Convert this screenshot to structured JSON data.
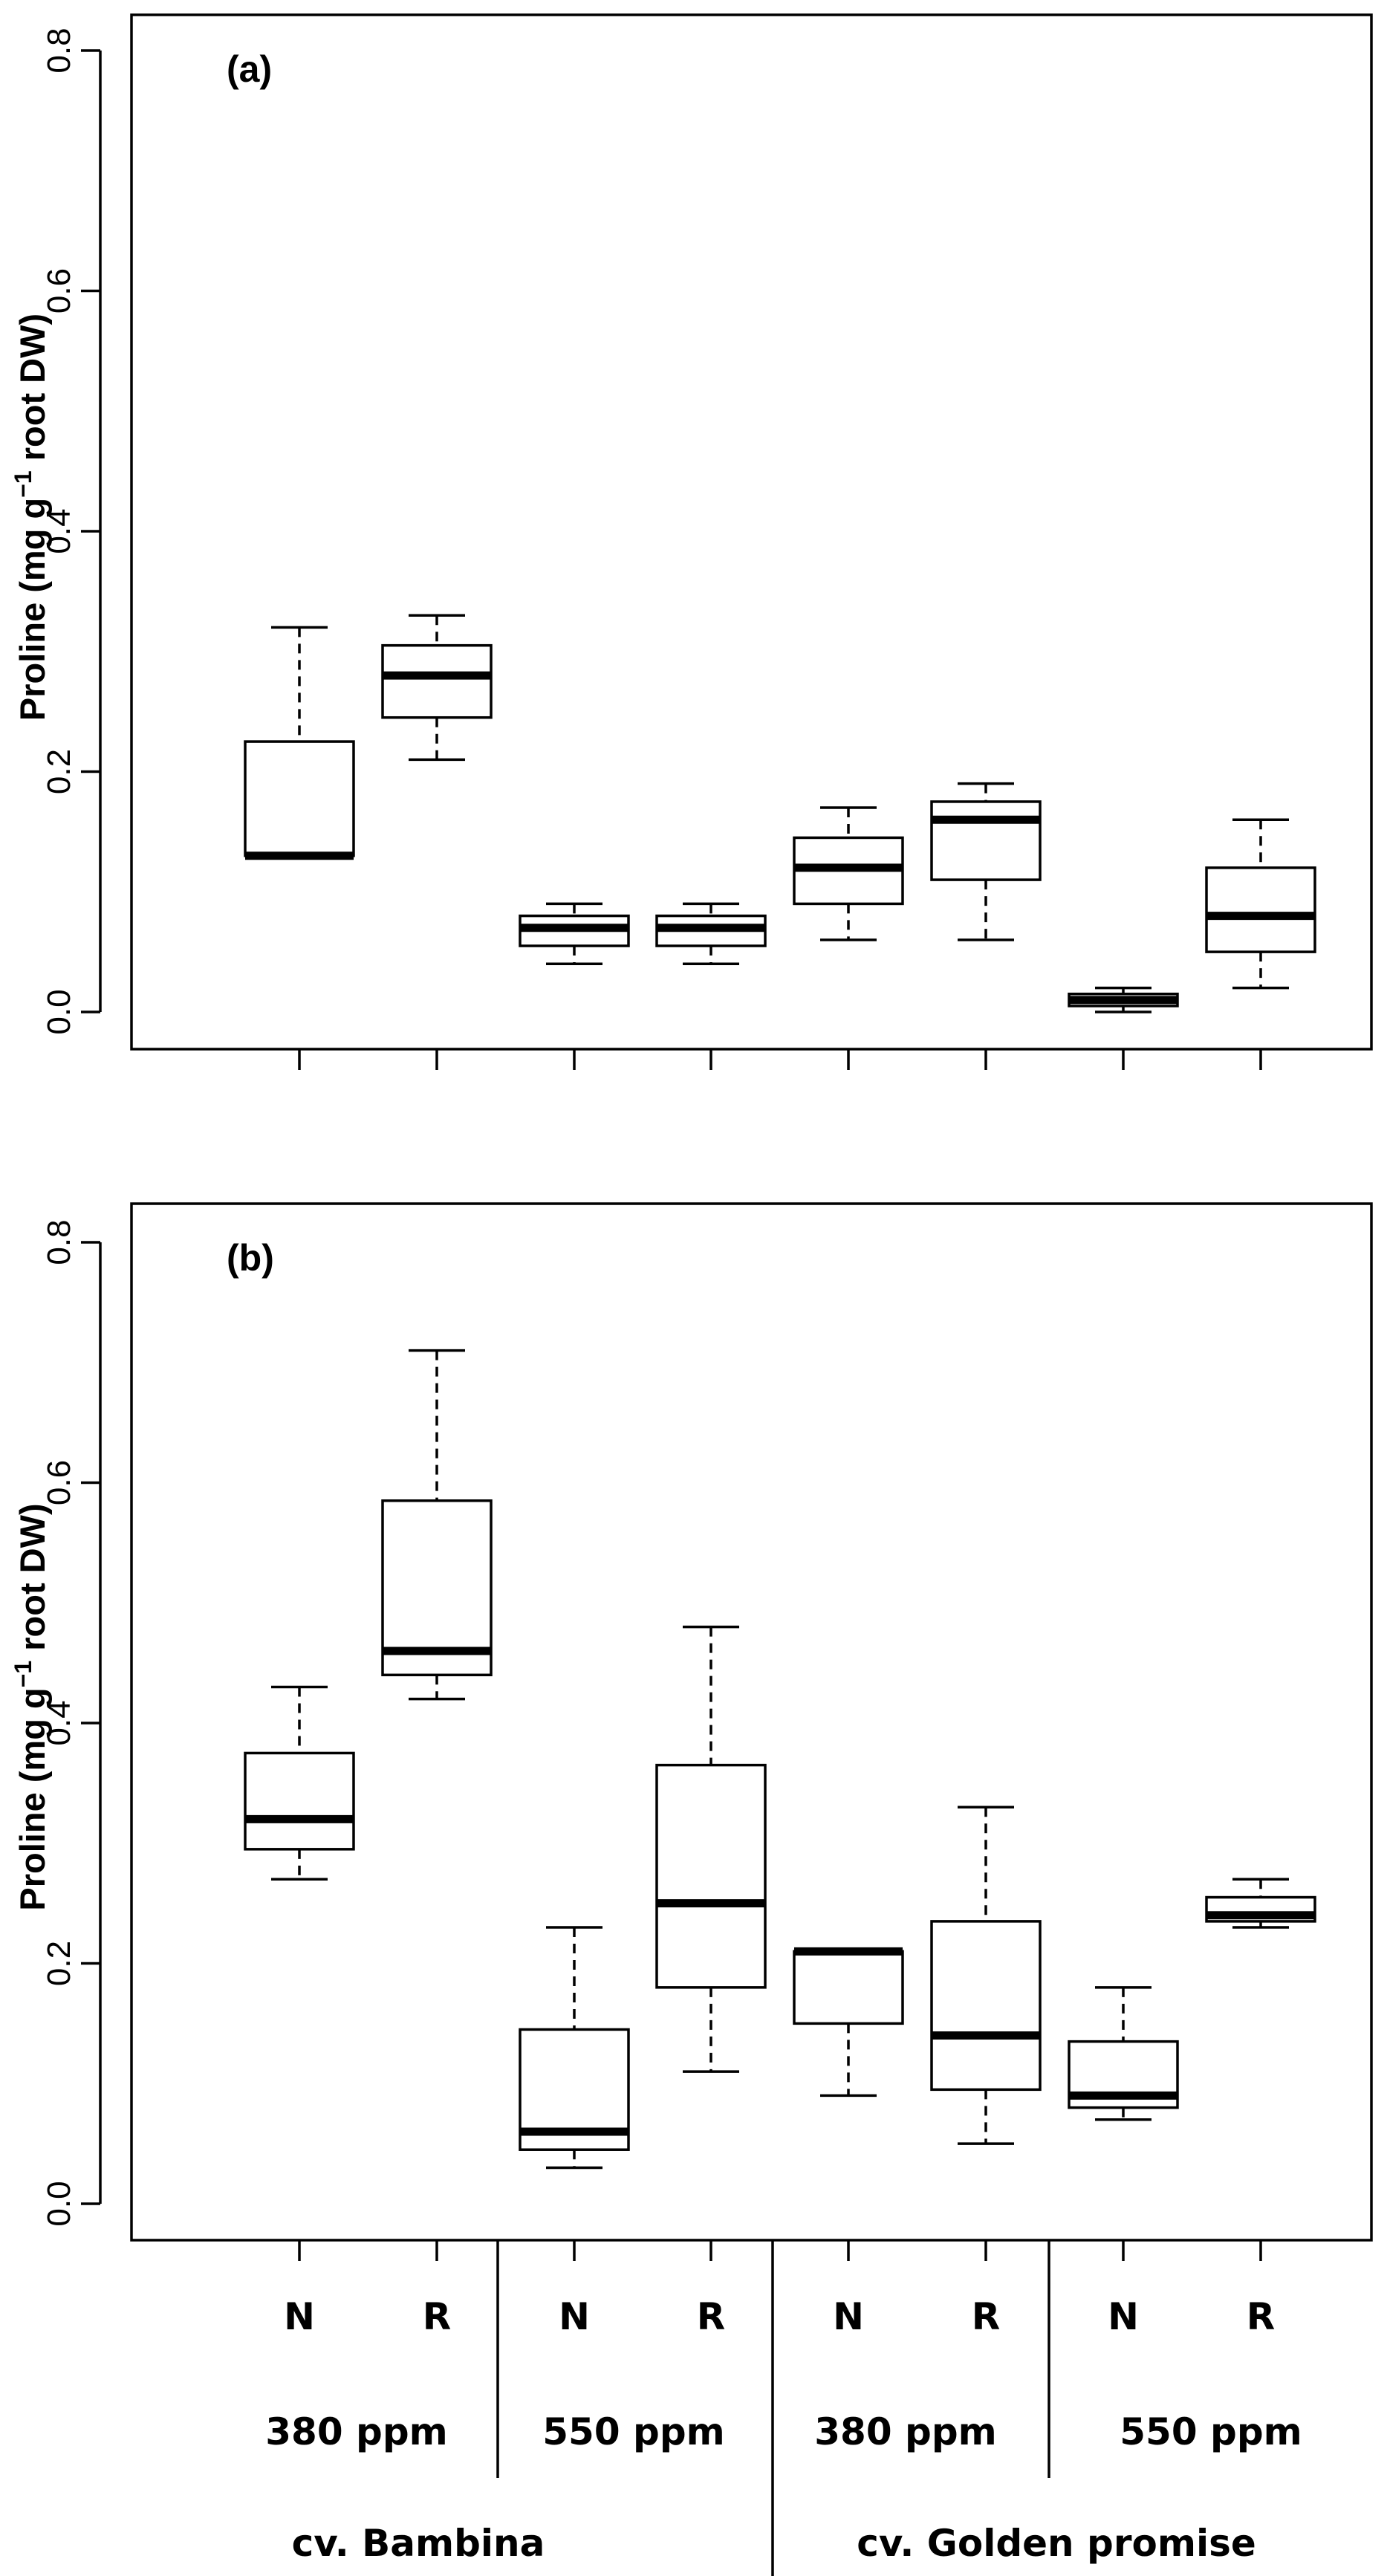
{
  "chart_data": [
    {
      "type": "boxplot",
      "panel_label": "(a)",
      "ylabel": "Proline (mg g",
      "ylabel_sup": "−1",
      "ylabel_suffix": " root DW)",
      "ylim": [
        0,
        0.8
      ],
      "yticks": [
        "0.0",
        "0.2",
        "0.4",
        "0.6",
        "0.8"
      ],
      "categories": [
        "N",
        "R",
        "N",
        "R",
        "N",
        "R",
        "N",
        "R"
      ],
      "boxes": [
        {
          "min": 0.13,
          "q1": 0.13,
          "median": 0.13,
          "q3": 0.225,
          "max": 0.32
        },
        {
          "min": 0.21,
          "q1": 0.245,
          "median": 0.28,
          "q3": 0.305,
          "max": 0.33
        },
        {
          "min": 0.04,
          "q1": 0.055,
          "median": 0.07,
          "q3": 0.08,
          "max": 0.09
        },
        {
          "min": 0.04,
          "q1": 0.055,
          "median": 0.07,
          "q3": 0.08,
          "max": 0.09
        },
        {
          "min": 0.06,
          "q1": 0.09,
          "median": 0.12,
          "q3": 0.145,
          "max": 0.17
        },
        {
          "min": 0.06,
          "q1": 0.11,
          "median": 0.16,
          "q3": 0.175,
          "max": 0.19
        },
        {
          "min": 0.0,
          "q1": 0.005,
          "median": 0.01,
          "q3": 0.015,
          "max": 0.02
        },
        {
          "min": 0.02,
          "q1": 0.05,
          "median": 0.08,
          "q3": 0.12,
          "max": 0.16
        }
      ]
    },
    {
      "type": "boxplot",
      "panel_label": "(b)",
      "ylabel": "Proline (mg g",
      "ylabel_sup": "−1",
      "ylabel_suffix": " root DW)",
      "ylim": [
        0,
        0.8
      ],
      "yticks": [
        "0.0",
        "0.2",
        "0.4",
        "0.6",
        "0.8"
      ],
      "categories": [
        "N",
        "R",
        "N",
        "R",
        "N",
        "R",
        "N",
        "R"
      ],
      "boxes": [
        {
          "min": 0.27,
          "q1": 0.295,
          "median": 0.32,
          "q3": 0.375,
          "max": 0.43
        },
        {
          "min": 0.42,
          "q1": 0.44,
          "median": 0.46,
          "q3": 0.585,
          "max": 0.71
        },
        {
          "min": 0.03,
          "q1": 0.045,
          "median": 0.06,
          "q3": 0.145,
          "max": 0.23
        },
        {
          "min": 0.11,
          "q1": 0.18,
          "median": 0.25,
          "q3": 0.365,
          "max": 0.48
        },
        {
          "min": 0.09,
          "q1": 0.15,
          "median": 0.21,
          "q3": 0.21,
          "max": 0.21
        },
        {
          "min": 0.05,
          "q1": 0.095,
          "median": 0.14,
          "q3": 0.235,
          "max": 0.33
        },
        {
          "min": 0.07,
          "q1": 0.08,
          "median": 0.09,
          "q3": 0.135,
          "max": 0.18
        },
        {
          "min": 0.23,
          "q1": 0.235,
          "median": 0.24,
          "q3": 0.255,
          "max": 0.27
        }
      ],
      "co2_groups": [
        "380 ppm",
        "550 ppm",
        "380 ppm",
        "550 ppm"
      ],
      "cultivars": [
        "cv. Bambina",
        "cv. Golden promise"
      ]
    }
  ]
}
